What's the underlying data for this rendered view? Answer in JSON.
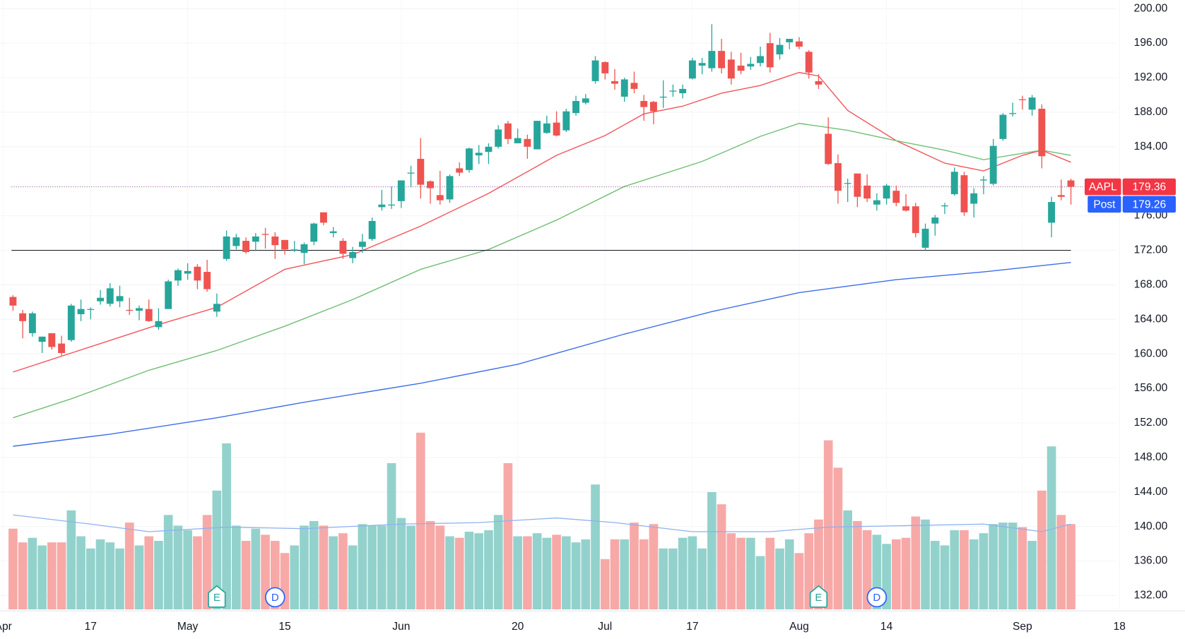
{
  "chart_data": {
    "type": "candlestick",
    "symbol": "AAPL",
    "last_price": 179.36,
    "post_label": "Post",
    "post_price": 179.26,
    "hline": 172,
    "grid": true,
    "up_color": "#26a69a",
    "down_color": "#ef5350",
    "up_volume_color": "#93d2cc",
    "down_volume_color": "#f7a9a7",
    "last_color": "#f23645",
    "post_color": "#2962ff",
    "hline_color": "#131722",
    "xlim": [
      -1.33,
      113.7
    ],
    "ylim": [
      130.4,
      201
    ],
    "volume_lim": [
      0,
      400
    ],
    "xticks": [
      {
        "value": -1,
        "label": "Apr"
      },
      {
        "value": 8,
        "label": "17"
      },
      {
        "value": 18,
        "label": "May"
      },
      {
        "value": 28,
        "label": "15"
      },
      {
        "value": 40,
        "label": "Jun"
      },
      {
        "value": 52,
        "label": "20"
      },
      {
        "value": 61,
        "label": "Jul"
      },
      {
        "value": 70,
        "label": "17"
      },
      {
        "value": 81,
        "label": "Aug"
      },
      {
        "value": 90,
        "label": "14"
      },
      {
        "value": 104,
        "label": "Sep"
      },
      {
        "value": 114,
        "label": "18"
      }
    ],
    "yticks": [
      {
        "value": 132,
        "label": "132.00"
      },
      {
        "value": 136,
        "label": "136.00"
      },
      {
        "value": 140,
        "label": "140.00"
      },
      {
        "value": 144,
        "label": "144.00"
      },
      {
        "value": 148,
        "label": "148.00"
      },
      {
        "value": 152,
        "label": "152.00"
      },
      {
        "value": 156,
        "label": "156.00"
      },
      {
        "value": 160,
        "label": "160.00"
      },
      {
        "value": 164,
        "label": "164.00"
      },
      {
        "value": 168,
        "label": "168.00"
      },
      {
        "value": 172,
        "label": "172.00"
      },
      {
        "value": 176,
        "label": "176.00"
      },
      {
        "value": 184,
        "label": "184.00"
      },
      {
        "value": 188,
        "label": "188.00"
      },
      {
        "value": 192,
        "label": "192.00"
      },
      {
        "value": 196,
        "label": "196.00"
      },
      {
        "value": 200,
        "label": "200.00"
      }
    ],
    "open": [
      166.6,
      164.7,
      162.4,
      161.4,
      162.4,
      161.2,
      161.6,
      164.6,
      165.1,
      166.1,
      165.8,
      166.1,
      165.1,
      165.0,
      165.2,
      163.1,
      165.2,
      168.5,
      169.3,
      170.1,
      169.5,
      164.9,
      171.0,
      172.5,
      173.1,
      173.0,
      173.9,
      173.6,
      173.2,
      172.0,
      171.7,
      173.0,
      176.4,
      174.0,
      173.1,
      171.1,
      172.4,
      173.3,
      177.0,
      177.3,
      177.7,
      181.0,
      182.6,
      180.0,
      178.4,
      177.9,
      181.5,
      181.3,
      183.0,
      183.4,
      184.0,
      186.7,
      184.4,
      184.9,
      183.7,
      185.6,
      186.8,
      185.9,
      187.9,
      189.1,
      191.6,
      193.8,
      191.6,
      189.8,
      191.4,
      189.3,
      189.2,
      189.7,
      190.5,
      190.2,
      191.9,
      193.4,
      193.1,
      195.1,
      194.1,
      193.4,
      193.3,
      193.7,
      196.0,
      194.7,
      196.1,
      196.2,
      195.0,
      191.6,
      185.5,
      182.1,
      179.7,
      180.9,
      179.5,
      177.3,
      178.0,
      178.9,
      177.1,
      177.1,
      172.3,
      175.1,
      177.1,
      178.5,
      180.7,
      177.4,
      180.1,
      179.7,
      184.9,
      187.8,
      189.5,
      188.3,
      188.4,
      175.2,
      178.4,
      180.1
    ],
    "high": [
      166.8,
      165.1,
      164.9,
      162.0,
      162.4,
      162.1,
      165.8,
      166.3,
      165.4,
      167.4,
      168.2,
      167.9,
      166.5,
      165.6,
      166.3,
      165.3,
      168.6,
      169.9,
      170.5,
      170.4,
      170.9,
      167.0,
      174.3,
      173.9,
      173.5,
      174.0,
      174.6,
      174.1,
      173.2,
      173.1,
      172.9,
      175.2,
      176.4,
      174.7,
      173.4,
      172.4,
      173.9,
      175.8,
      179.0,
      179.4,
      180.1,
      181.8,
      185.0,
      180.1,
      181.2,
      180.8,
      182.2,
      183.9,
      184.2,
      184.4,
      186.5,
      187.0,
      186.1,
      185.4,
      187.0,
      187.6,
      188.1,
      188.4,
      189.9,
      190.1,
      194.5,
      193.9,
      193.0,
      192.0,
      192.7,
      190.0,
      189.3,
      191.7,
      191.2,
      191.2,
      194.3,
      194.3,
      198.2,
      196.5,
      195.0,
      194.9,
      194.4,
      195.6,
      197.2,
      196.6,
      196.5,
      196.7,
      195.2,
      192.4,
      187.4,
      183.1,
      180.3,
      180.9,
      180.8,
      178.6,
      179.7,
      179.5,
      178.5,
      177.5,
      175.1,
      176.1,
      177.5,
      181.6,
      181.1,
      179.2,
      180.6,
      184.9,
      187.9,
      189.1,
      189.9,
      190.0,
      188.9,
      178.2,
      180.2,
      180.3
    ],
    "low": [
      165.0,
      161.8,
      162.0,
      160.1,
      160.5,
      159.8,
      161.4,
      163.8,
      164.0,
      165.7,
      165.5,
      165.4,
      164.5,
      163.9,
      163.7,
      162.8,
      165.2,
      167.9,
      168.6,
      167.5,
      167.2,
      164.3,
      170.8,
      172.1,
      171.6,
      171.9,
      172.2,
      171.0,
      171.5,
      171.8,
      170.4,
      172.6,
      174.9,
      173.5,
      171.0,
      170.5,
      171.7,
      173.1,
      176.6,
      176.8,
      176.9,
      179.3,
      178.0,
      177.4,
      177.3,
      177.5,
      180.6,
      181.0,
      182.0,
      182.0,
      183.8,
      184.3,
      184.4,
      182.6,
      183.7,
      185.5,
      185.2,
      185.7,
      187.6,
      188.9,
      191.3,
      191.8,
      190.6,
      189.2,
      190.2,
      187.0,
      186.6,
      188.5,
      189.8,
      189.6,
      191.8,
      192.4,
      192.7,
      192.5,
      191.2,
      192.4,
      192.9,
      193.3,
      192.6,
      194.1,
      195.3,
      195.3,
      191.9,
      190.7,
      181.9,
      177.4,
      177.6,
      177.0,
      177.6,
      176.6,
      177.3,
      177.1,
      176.5,
      173.5,
      172.0,
      173.7,
      176.2,
      178.3,
      176.0,
      175.8,
      178.5,
      179.5,
      184.7,
      187.5,
      188.3,
      187.6,
      181.5,
      173.5,
      177.8,
      177.3
    ],
    "close": [
      165.6,
      163.8,
      164.7,
      162.0,
      160.8,
      160.1,
      165.6,
      165.2,
      165.2,
      166.5,
      167.6,
      166.7,
      165.0,
      165.3,
      163.8,
      163.8,
      168.4,
      169.7,
      169.6,
      168.5,
      167.5,
      165.8,
      173.6,
      173.5,
      171.8,
      173.6,
      173.8,
      172.6,
      172.1,
      172.1,
      172.7,
      175.1,
      175.2,
      174.2,
      171.6,
      171.8,
      173.0,
      175.4,
      177.3,
      177.3,
      180.1,
      181.0,
      179.6,
      179.2,
      177.8,
      180.6,
      181.0,
      183.8,
      183.3,
      184.0,
      186.0,
      184.9,
      185.0,
      184.0,
      187.0,
      186.7,
      185.3,
      188.1,
      189.3,
      189.6,
      194.0,
      192.5,
      191.3,
      191.8,
      190.7,
      188.6,
      188.1,
      189.8,
      190.5,
      190.7,
      194.0,
      193.7,
      195.1,
      193.1,
      191.9,
      192.8,
      193.6,
      194.5,
      193.2,
      195.8,
      196.5,
      195.6,
      192.6,
      191.2,
      182.0,
      178.9,
      179.8,
      178.2,
      178.0,
      177.8,
      179.5,
      177.5,
      176.6,
      174.0,
      174.5,
      175.8,
      177.2,
      181.1,
      176.4,
      178.6,
      180.2,
      184.1,
      187.7,
      187.9,
      189.4,
      189.7,
      182.9,
      177.6,
      178.2,
      179.36
    ],
    "volume": [
      53,
      44,
      47,
      42,
      44,
      44,
      65,
      48,
      40,
      46,
      44,
      40,
      57,
      42,
      48,
      45,
      62,
      55,
      52,
      48,
      62,
      78,
      109,
      55,
      45,
      53,
      49,
      45,
      37,
      42,
      55,
      58,
      55,
      48,
      50,
      42,
      56,
      55,
      55,
      96,
      60,
      55,
      116,
      58,
      55,
      48,
      47,
      51,
      50,
      52,
      62,
      96,
      48,
      48,
      50,
      47,
      49,
      48,
      44,
      46,
      82,
      33,
      46,
      46,
      57,
      46,
      56,
      40,
      40,
      47,
      48,
      40,
      77,
      69,
      50,
      47,
      47,
      35,
      47,
      40,
      46,
      37,
      50,
      59,
      111,
      93,
      65,
      58,
      52,
      49,
      43,
      46,
      47,
      61,
      59,
      45,
      42,
      52,
      52,
      46,
      50,
      56,
      57,
      57,
      54,
      45,
      78,
      107,
      62,
      56
    ],
    "moving_averages": [
      {
        "color": "#f2545b",
        "x": [
          0,
          6,
          15,
          21,
          28,
          35,
          42,
          49,
          56,
          61,
          65,
          69,
          73,
          77,
          81,
          83,
          86,
          91,
          96,
          100,
          104,
          106,
          109
        ],
        "values": [
          157.9,
          160.1,
          163.4,
          165.4,
          169.8,
          171.5,
          174.8,
          178.6,
          183.0,
          185.3,
          187.8,
          188.7,
          190.2,
          191.1,
          192.6,
          192.2,
          188.2,
          184.7,
          182.1,
          181.2,
          183.0,
          183.6,
          182.2
        ]
      },
      {
        "color": "#6fbf73",
        "x": [
          0,
          6,
          14,
          21,
          28,
          35,
          42,
          49,
          56,
          63,
          71,
          77,
          81,
          86,
          91,
          96,
          100,
          106,
          109
        ],
        "values": [
          152.6,
          154.8,
          158.1,
          160.4,
          163.2,
          166.3,
          169.8,
          172.1,
          175.5,
          179.4,
          182.3,
          185.2,
          186.7,
          185.9,
          184.7,
          183.6,
          182.5,
          183.6,
          183.0
        ]
      },
      {
        "color": "#3d6ee8",
        "x": [
          0,
          10,
          21,
          30,
          42,
          52,
          63,
          72,
          81,
          91,
          100,
          109
        ],
        "values": [
          149.3,
          150.7,
          152.6,
          154.4,
          156.6,
          158.8,
          162.3,
          164.9,
          167.1,
          168.6,
          169.5,
          170.6
        ]
      }
    ],
    "volume_ma": {
      "color": "#8fb1f0",
      "x": [
        0,
        8,
        14,
        22,
        30,
        40,
        48,
        56,
        62,
        70,
        78,
        84,
        92,
        100,
        106,
        109
      ],
      "values": [
        62,
        56,
        51,
        54,
        53,
        56,
        57,
        60,
        57,
        51,
        51,
        54,
        55,
        56,
        51,
        56
      ]
    },
    "events": [
      {
        "label": "E",
        "x": 21,
        "color": "#26a69a"
      },
      {
        "label": "D",
        "x": 27,
        "color": "#2962ff"
      },
      {
        "label": "E",
        "x": 83,
        "color": "#26a69a"
      },
      {
        "label": "D",
        "x": 89,
        "color": "#2962ff"
      }
    ]
  }
}
